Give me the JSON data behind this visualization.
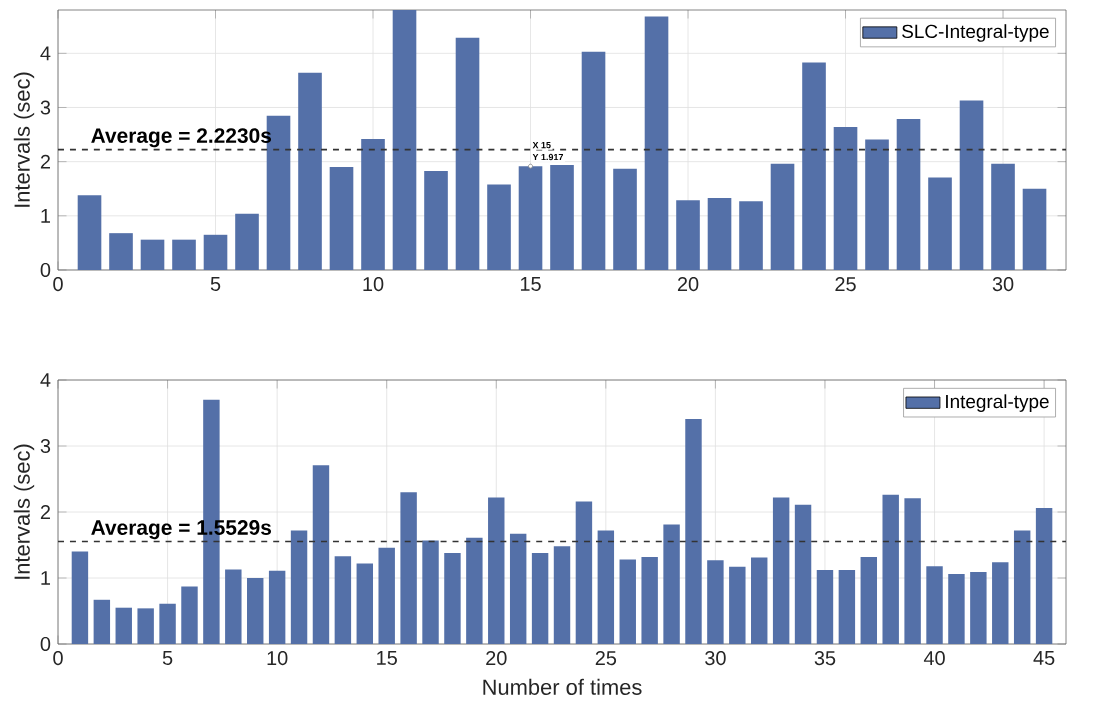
{
  "chart_data": [
    {
      "type": "bar",
      "ylabel": "Intervals (sec)",
      "x": [
        1,
        2,
        3,
        4,
        5,
        6,
        7,
        8,
        9,
        10,
        11,
        12,
        13,
        14,
        15,
        16,
        17,
        18,
        19,
        20,
        21,
        22,
        23,
        24,
        25,
        26,
        27,
        28,
        29,
        30,
        31
      ],
      "series": [
        {
          "name": "SLC-Integral-type",
          "color": "#5470a8",
          "values": [
            1.38,
            0.68,
            0.56,
            0.56,
            0.65,
            1.04,
            2.85,
            3.64,
            1.9,
            2.42,
            4.8,
            1.83,
            4.29,
            1.58,
            1.917,
            1.94,
            4.03,
            1.87,
            4.68,
            1.29,
            1.33,
            1.27,
            1.96,
            3.83,
            2.64,
            2.41,
            2.79,
            1.71,
            3.13,
            1.96,
            1.5
          ]
        }
      ],
      "xlim": [
        0,
        32
      ],
      "xticks": [
        0,
        5,
        10,
        15,
        20,
        25,
        30
      ],
      "ylim": [
        0,
        4.8
      ],
      "yticks": [
        0,
        1,
        2,
        3,
        4
      ],
      "ref_lines": [
        {
          "axis": "y",
          "value": 2.223,
          "label": "Average = 2.2230s",
          "color": "#333333",
          "line_style": "dashed"
        }
      ],
      "annotations": [
        {
          "text": "X 15",
          "x": 15,
          "y": 1.917
        },
        {
          "text": "Y 1.917",
          "x": 15,
          "y": 1.917
        }
      ],
      "grid": true,
      "legend": "top right"
    },
    {
      "type": "bar",
      "xlabel": "Number of times",
      "ylabel": "Intervals (sec)",
      "x": [
        1,
        2,
        3,
        4,
        5,
        6,
        7,
        8,
        9,
        10,
        11,
        12,
        13,
        14,
        15,
        16,
        17,
        18,
        19,
        20,
        21,
        22,
        23,
        24,
        25,
        26,
        27,
        28,
        29,
        30,
        31,
        32,
        33,
        34,
        35,
        36,
        37,
        38,
        39,
        40,
        41,
        42,
        43,
        44,
        45
      ],
      "series": [
        {
          "name": "Integral-type",
          "color": "#5470a8",
          "values": [
            1.4,
            0.67,
            0.55,
            0.54,
            0.61,
            0.87,
            3.7,
            1.13,
            1.0,
            1.11,
            1.72,
            2.71,
            1.33,
            1.22,
            1.46,
            2.3,
            1.57,
            1.38,
            1.61,
            2.22,
            1.67,
            1.38,
            1.48,
            2.16,
            1.72,
            1.28,
            1.32,
            1.81,
            3.41,
            1.27,
            1.17,
            1.31,
            2.22,
            2.11,
            1.12,
            1.12,
            1.32,
            2.26,
            2.21,
            1.18,
            1.06,
            1.09,
            1.24,
            1.72,
            2.06
          ]
        }
      ],
      "xlim": [
        0,
        46
      ],
      "xticks": [
        0,
        5,
        10,
        15,
        20,
        25,
        30,
        35,
        40,
        45
      ],
      "ylim": [
        0,
        4
      ],
      "yticks": [
        0,
        1,
        2,
        3,
        4
      ],
      "ref_lines": [
        {
          "axis": "y",
          "value": 1.5529,
          "label": "Average = 1.5529s",
          "color": "#333333",
          "line_style": "dashed"
        }
      ],
      "grid": true,
      "legend": "top right"
    }
  ]
}
